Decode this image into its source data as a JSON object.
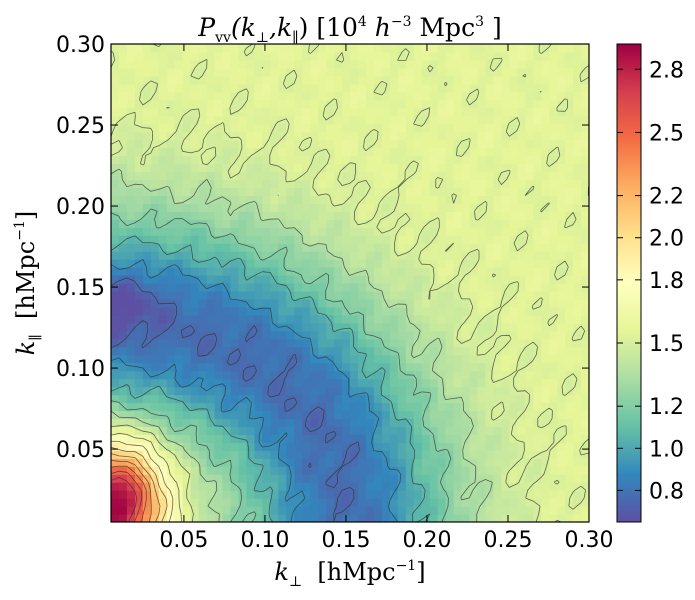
{
  "chart_data": {
    "type": "heatmap",
    "title": "P_vv(k_⊥, k_∥)  [10^4 h^-3 Mpc^3]",
    "title_parts": {
      "symbol": "P",
      "subscript": "vv",
      "args": "(k",
      "perp": "⊥",
      "comma": ",k",
      "par": "∥",
      "close": ")",
      "units_open": "[10",
      "units_exp": "4",
      "units_h": " h",
      "units_hexp": "−3",
      "units_mpc": " Mpc",
      "units_mpcexp": "3",
      "units_close": " ]"
    },
    "xlabel": "k⊥  [hMpc⁻¹]",
    "xlabel_parts": {
      "k": "k",
      "sub": "⊥",
      "units": "  [hMpc",
      "exp": "−1",
      "close": "]"
    },
    "ylabel": "k∥  [hMpc⁻¹]",
    "ylabel_parts": {
      "k": "k",
      "sub": "∥",
      "units": "  [hMpc",
      "exp": "−1",
      "close": "]"
    },
    "xlim": [
      0.005,
      0.3
    ],
    "ylim": [
      0.005,
      0.3
    ],
    "x_ticks": [
      0.05,
      0.1,
      0.15,
      0.2,
      0.25,
      0.3
    ],
    "x_tick_labels": [
      "0.05",
      "0.10",
      "0.15",
      "0.20",
      "0.25",
      "0.30"
    ],
    "y_ticks": [
      0.05,
      0.1,
      0.15,
      0.2,
      0.25,
      0.3
    ],
    "y_tick_labels": [
      "0.05",
      "0.10",
      "0.15",
      "0.20",
      "0.25",
      "0.30"
    ],
    "colorbar": {
      "range": [
        0.65,
        2.92
      ],
      "ticks": [
        0.8,
        1.0,
        1.2,
        1.5,
        1.8,
        2.0,
        2.2,
        2.5,
        2.8
      ],
      "tick_labels": [
        "0.8",
        "1.0",
        "1.2",
        "1.5",
        "1.8",
        "2.0",
        "2.2",
        "2.5",
        "2.8"
      ],
      "colormap": "Spectral_r",
      "colormap_stops": [
        "#5e4fa2",
        "#3288bd",
        "#66c2a5",
        "#abdda4",
        "#e6f598",
        "#ffffbf",
        "#fee08b",
        "#fdae61",
        "#f46d43",
        "#d53e4f",
        "#9e0142"
      ]
    },
    "contour_levels": [
      0.75,
      0.9,
      1.05,
      1.2,
      1.35,
      1.5,
      1.65,
      1.8,
      1.95,
      2.1,
      2.25,
      2.4,
      2.55,
      2.7
    ],
    "model_description": "Approximate field: peak ~2.9 near (0.01, 0.02), minimum ~0.75 trough around (0.10-0.15, 0.05-0.12), values rising to ~1.6-1.7 toward large k",
    "model": {
      "base": 1.55,
      "peak": {
        "x": 0.008,
        "y": 0.018,
        "amp": 1.45,
        "sx": 0.028,
        "sy": 0.036
      },
      "trough": {
        "cx": 0.005,
        "cy": 0.005,
        "radius": 0.135,
        "width": 0.07,
        "amp": -0.78,
        "angle_bias": 0.01
      },
      "dip": {
        "x": 0.01,
        "y": 0.14,
        "amp": -0.15,
        "sx": 0.025,
        "sy": 0.02
      }
    }
  }
}
